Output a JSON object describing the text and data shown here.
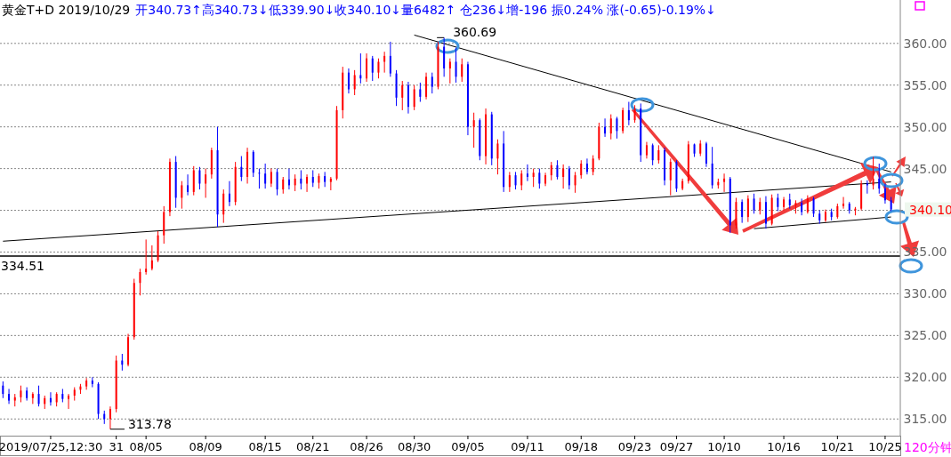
{
  "chart_data": {
    "type": "candlestick",
    "title": "黄金T+D 2019/10/29",
    "subtitle": "开340.73↑高340.73↓低339.90↓收340.10↓量6482↑ 仓236↓增-196 振0.24% 涨(-0.65)-0.19%↓",
    "categories": [
      null,
      null,
      null,
      null,
      null,
      null,
      null,
      null,
      "2019/07/25,12:30",
      null,
      null,
      null,
      null,
      null,
      null,
      null,
      null,
      null,
      null,
      "31",
      null,
      null,
      null,
      null,
      "08/05",
      null,
      null,
      null,
      null,
      null,
      null,
      null,
      null,
      null,
      "08/09",
      null,
      null,
      null,
      null,
      null,
      null,
      null,
      null,
      null,
      "08/15",
      null,
      null,
      null,
      null,
      null,
      null,
      null,
      "08/21",
      null,
      null,
      null,
      null,
      null,
      null,
      null,
      null,
      "08/26",
      null,
      null,
      null,
      null,
      null,
      null,
      null,
      "08/30",
      null,
      null,
      null,
      null,
      null,
      null,
      null,
      null,
      "09/05",
      null,
      null,
      null,
      null,
      null,
      null,
      null,
      null,
      null,
      "09/11",
      null,
      null,
      null,
      null,
      null,
      null,
      null,
      null,
      "09/18",
      null,
      null,
      null,
      null,
      null,
      null,
      null,
      null,
      "09/23",
      null,
      null,
      null,
      null,
      null,
      null,
      "09/27",
      null,
      null,
      null,
      null,
      null,
      null,
      null,
      "10/10",
      null,
      null,
      null,
      null,
      null,
      null,
      null,
      null,
      null,
      "10/16",
      null,
      null,
      null,
      null,
      null,
      null,
      null,
      null,
      "10/21",
      null,
      null,
      null,
      null,
      null,
      null,
      null,
      "10/25",
      null
    ],
    "ohlc": [
      [
        319,
        319.5,
        317.5,
        318
      ],
      [
        318,
        318.6,
        316.8,
        317.2
      ],
      [
        317.2,
        318,
        316.5,
        317.6
      ],
      [
        317.6,
        319,
        317,
        318.4
      ],
      [
        318.4,
        318.8,
        317.2,
        317.5
      ],
      [
        317.5,
        318.2,
        316.8,
        318
      ],
      [
        318,
        319,
        316.5,
        316.8
      ],
      [
        316.8,
        317.8,
        316.2,
        317.5
      ],
      [
        317.5,
        318.2,
        316.6,
        317
      ],
      [
        317,
        318.2,
        316.5,
        318
      ],
      [
        318,
        318.6,
        317,
        317.4
      ],
      [
        317.4,
        318,
        316.2,
        317.8
      ],
      [
        317.8,
        318.8,
        317.2,
        318.5
      ],
      [
        318.5,
        319.2,
        318,
        318.9
      ],
      [
        318.9,
        319.9,
        318.5,
        319.6
      ],
      [
        319.6,
        320,
        318.8,
        319.2
      ],
      [
        319.2,
        319.4,
        315,
        315.6
      ],
      [
        315.6,
        316,
        314.4,
        315
      ],
      [
        315,
        316.5,
        313.78,
        316.2
      ],
      [
        316.2,
        322.6,
        315.8,
        322
      ],
      [
        322,
        322.8,
        320.8,
        321.5
      ],
      [
        321.5,
        325.2,
        321.3,
        324.8
      ],
      [
        324.8,
        331.8,
        324.5,
        331.3
      ],
      [
        331.3,
        333,
        329.8,
        332.6
      ],
      [
        332.6,
        336.5,
        332.3,
        333
      ],
      [
        333,
        335.8,
        332.8,
        334
      ],
      [
        334,
        337.5,
        333.8,
        337
      ],
      [
        337,
        340.5,
        336,
        339.8
      ],
      [
        339.8,
        346.2,
        339.3,
        345.8
      ],
      [
        345.8,
        346.5,
        340.3,
        341.5
      ],
      [
        341.5,
        343.5,
        340.2,
        343
      ],
      [
        343,
        344.3,
        341.8,
        342.2
      ],
      [
        342.2,
        345.3,
        341.8,
        344.8
      ],
      [
        344.8,
        345.2,
        342.5,
        343.2
      ],
      [
        343.2,
        345,
        341.5,
        344.3
      ],
      [
        344.3,
        347.5,
        343.8,
        347.2
      ],
      [
        347.2,
        350,
        338,
        339.5
      ],
      [
        339.5,
        342.5,
        338.5,
        342
      ],
      [
        342,
        343.5,
        340.5,
        341
      ],
      [
        341,
        345.8,
        340.6,
        345.2
      ],
      [
        345.2,
        346.5,
        343.5,
        344
      ],
      [
        344,
        347.5,
        343.2,
        347
      ],
      [
        347,
        347.2,
        344,
        344.5
      ],
      [
        344.5,
        345,
        342.6,
        344.4
      ],
      [
        344.4,
        345.6,
        342.6,
        343.2
      ],
      [
        343.2,
        345,
        342.8,
        344.6
      ],
      [
        344.6,
        345,
        341.8,
        342.5
      ],
      [
        342.5,
        344,
        342,
        343.7
      ],
      [
        343.7,
        345,
        342.5,
        343
      ],
      [
        343,
        344.3,
        342.3,
        343.8
      ],
      [
        343.8,
        344.8,
        342.5,
        343.2
      ],
      [
        343.2,
        344.3,
        342.2,
        344
      ],
      [
        344,
        344.8,
        342.8,
        343.3
      ],
      [
        343.3,
        344.4,
        342.6,
        344.1
      ],
      [
        344.1,
        344.6,
        342.8,
        343.4
      ],
      [
        343.4,
        344,
        342.4,
        343.8
      ],
      [
        343.8,
        352.5,
        343.6,
        352
      ],
      [
        352,
        357.2,
        351,
        356.5
      ],
      [
        356.5,
        357,
        354,
        354.5
      ],
      [
        354.5,
        356.8,
        353.8,
        356.2
      ],
      [
        356.2,
        358.8,
        355.2,
        355.8
      ],
      [
        355.8,
        358.8,
        355.4,
        358.2
      ],
      [
        358.2,
        358.5,
        355.5,
        356.5
      ],
      [
        356.5,
        358.2,
        355.8,
        357.8
      ],
      [
        357.8,
        359,
        356.5,
        358.5
      ],
      [
        358.5,
        360.2,
        356,
        356.4
      ],
      [
        356.4,
        356.8,
        352.5,
        353.5
      ],
      [
        353.5,
        355.5,
        352,
        355
      ],
      [
        355,
        355.4,
        351.6,
        352.4
      ],
      [
        352.4,
        355,
        352,
        354.5
      ],
      [
        354.5,
        355.3,
        353,
        353.6
      ],
      [
        353.6,
        356.5,
        353.3,
        356
      ],
      [
        356,
        356.5,
        354,
        354.8
      ],
      [
        354.8,
        360.2,
        354.5,
        359.6
      ],
      [
        359.6,
        360.69,
        356,
        357
      ],
      [
        357,
        358.2,
        355.2,
        357.8
      ],
      [
        357.8,
        359.5,
        355.3,
        356
      ],
      [
        356,
        358.2,
        355.4,
        357.5
      ],
      [
        357.5,
        357.8,
        349,
        350
      ],
      [
        350,
        351.7,
        347.5,
        350.8
      ],
      [
        350.8,
        351,
        346,
        346.5
      ],
      [
        346.5,
        352.2,
        345.5,
        351.5
      ],
      [
        351.5,
        351.8,
        345.4,
        346.2
      ],
      [
        346.2,
        348.5,
        344.3,
        348
      ],
      [
        348,
        349.5,
        342.2,
        342.8
      ],
      [
        342.8,
        344.6,
        342.2,
        344.2
      ],
      [
        344.2,
        344.6,
        342.5,
        343
      ],
      [
        343,
        344.8,
        342.4,
        344.4
      ],
      [
        344.4,
        345.5,
        343.5,
        344
      ],
      [
        344,
        345,
        342.8,
        344.5
      ],
      [
        344.5,
        345,
        342.6,
        343.2
      ],
      [
        343.2,
        344.5,
        342.9,
        344.2
      ],
      [
        344.2,
        345.8,
        343.6,
        345.4
      ],
      [
        345.4,
        346,
        343.7,
        344
      ],
      [
        344,
        345.5,
        342.6,
        345
      ],
      [
        345,
        345.3,
        342.5,
        343
      ],
      [
        343,
        344.6,
        342.1,
        344.2
      ],
      [
        344.2,
        346,
        343.8,
        345.6
      ],
      [
        345.6,
        346.2,
        344.3,
        344.6
      ],
      [
        344.6,
        346.6,
        344.2,
        346.2
      ],
      [
        346.2,
        350.5,
        346,
        350
      ],
      [
        350,
        351,
        348.8,
        349.2
      ],
      [
        349.2,
        351.5,
        348.5,
        351
      ],
      [
        351,
        351.2,
        348.6,
        349.5
      ],
      [
        349.5,
        352.3,
        349.2,
        352
      ],
      [
        352,
        353,
        350.2,
        350.8
      ],
      [
        350.8,
        352.6,
        350.5,
        352.2
      ],
      [
        352.2,
        352.8,
        345.8,
        346.6
      ],
      [
        346.6,
        348.2,
        346.2,
        347.8
      ],
      [
        347.8,
        348,
        345.4,
        346
      ],
      [
        346,
        347.8,
        345.6,
        347.2
      ],
      [
        347.2,
        347.5,
        343,
        343.6
      ],
      [
        343.6,
        346.2,
        341.8,
        345.8
      ],
      [
        345.8,
        346,
        342.2,
        342.6
      ],
      [
        342.6,
        343.8,
        342.4,
        343.5
      ],
      [
        343.5,
        348.3,
        343.2,
        347.9
      ],
      [
        347.9,
        348,
        346.4,
        346.8
      ],
      [
        346.8,
        348.4,
        346.5,
        348
      ],
      [
        348,
        348.2,
        345.2,
        345.6
      ],
      [
        345.6,
        347.6,
        342.6,
        343
      ],
      [
        343,
        343.8,
        342.6,
        343.4
      ],
      [
        343.4,
        344.4,
        342.2,
        343.8
      ],
      [
        343.8,
        344,
        337.3,
        338.2
      ],
      [
        338.2,
        341.5,
        337.8,
        341
      ],
      [
        341,
        341.3,
        338.5,
        339.2
      ],
      [
        339.2,
        341.8,
        338.6,
        341.4
      ],
      [
        341.4,
        342,
        339.6,
        340
      ],
      [
        340,
        341.5,
        339.5,
        341
      ],
      [
        341,
        341.7,
        337.8,
        338.4
      ],
      [
        338.4,
        341.9,
        338.2,
        341.5
      ],
      [
        341.5,
        342,
        339.9,
        340.4
      ],
      [
        340.4,
        341.6,
        340,
        341.3
      ],
      [
        341.3,
        342,
        340.2,
        340.6
      ],
      [
        340.6,
        341.2,
        339.6,
        340.9
      ],
      [
        340.9,
        341.4,
        339.4,
        339.8
      ],
      [
        339.8,
        341.8,
        339.6,
        341.4
      ],
      [
        341.4,
        341.6,
        339.2,
        339.6
      ],
      [
        339.6,
        340,
        338.4,
        338.8
      ],
      [
        338.8,
        340.1,
        338.6,
        339.8
      ],
      [
        339.8,
        340.2,
        338.8,
        339.2
      ],
      [
        339.2,
        340.8,
        339,
        340.5
      ],
      [
        340.5,
        341.6,
        340.2,
        340.8
      ],
      [
        340.8,
        341,
        339.6,
        340
      ],
      [
        340,
        340.4,
        339.4,
        340.2
      ],
      [
        340.2,
        343.6,
        340,
        343.2
      ],
      [
        343.2,
        343.6,
        342,
        343
      ],
      [
        343,
        346.4,
        342.5,
        343.8
      ],
      [
        343.8,
        345.6,
        342,
        342.6
      ],
      [
        342.6,
        343.2,
        340.8,
        341.2
      ],
      [
        341.2,
        341.6,
        339.9,
        340.1
      ]
    ],
    "series": [
      {
        "type": "line",
        "color": "#000000",
        "values": [
          null,
          null,
          null,
          null,
          null,
          null,
          null,
          null,
          null,
          null,
          null,
          null,
          null,
          null,
          null,
          null,
          null,
          null,
          null,
          null,
          null,
          null,
          null,
          null,
          null,
          null,
          null,
          null,
          null,
          null,
          null,
          null,
          null,
          null,
          null,
          null,
          null,
          null,
          null,
          null,
          null,
          null,
          null,
          null,
          null,
          null,
          null,
          null,
          null,
          null,
          null,
          null,
          null,
          null,
          null,
          null,
          null,
          null,
          null,
          null,
          null,
          null,
          null,
          null,
          null,
          null,
          null,
          null,
          null,
          361,
          null,
          null,
          null,
          null,
          null,
          null,
          null,
          null,
          null,
          null,
          null,
          null,
          null,
          null,
          null,
          null,
          null,
          null,
          null,
          null,
          null,
          null,
          null,
          null,
          null,
          null,
          null,
          null,
          null,
          null,
          null,
          null,
          null,
          null,
          null,
          null,
          null,
          null,
          null,
          null,
          null,
          null,
          null,
          null,
          null,
          null,
          null,
          null,
          null,
          null,
          null,
          null,
          null,
          null,
          null,
          null,
          null,
          null,
          null,
          null,
          null,
          null,
          null,
          null,
          null,
          null,
          null,
          null,
          null,
          null,
          null,
          null,
          null,
          null,
          null,
          null,
          null,
          null,
          null,
          344.6
        ]
      },
      {
        "type": "line",
        "color": "#000000",
        "values": [
          336.3,
          null,
          null,
          null,
          null,
          null,
          null,
          null,
          null,
          null,
          null,
          null,
          null,
          null,
          null,
          null,
          null,
          null,
          null,
          null,
          null,
          null,
          null,
          null,
          null,
          null,
          null,
          null,
          null,
          null,
          null,
          null,
          null,
          null,
          null,
          null,
          null,
          null,
          null,
          null,
          null,
          null,
          null,
          null,
          null,
          null,
          null,
          null,
          null,
          null,
          null,
          null,
          null,
          null,
          null,
          null,
          null,
          null,
          null,
          null,
          null,
          null,
          null,
          null,
          null,
          null,
          null,
          null,
          null,
          null,
          null,
          null,
          null,
          null,
          null,
          null,
          null,
          null,
          null,
          null,
          null,
          null,
          null,
          null,
          null,
          null,
          null,
          null,
          null,
          null,
          null,
          null,
          null,
          null,
          null,
          null,
          null,
          null,
          null,
          null,
          null,
          null,
          null,
          null,
          null,
          null,
          null,
          null,
          null,
          null,
          null,
          null,
          null,
          null,
          null,
          null,
          null,
          null,
          null,
          null,
          null,
          null,
          null,
          null,
          null,
          null,
          null,
          null,
          null,
          null,
          null,
          null,
          null,
          null,
          null,
          null,
          null,
          null,
          null,
          null,
          null,
          null,
          null,
          null,
          null,
          null,
          null,
          null,
          null,
          343.4
        ]
      },
      {
        "type": "line",
        "color": "#000000",
        "values": [
          null,
          null,
          null,
          null,
          null,
          null,
          null,
          null,
          null,
          null,
          null,
          null,
          null,
          null,
          null,
          null,
          null,
          null,
          null,
          null,
          null,
          null,
          null,
          null,
          null,
          null,
          null,
          null,
          null,
          null,
          null,
          null,
          null,
          null,
          null,
          null,
          null,
          null,
          null,
          null,
          null,
          null,
          null,
          null,
          null,
          null,
          null,
          null,
          null,
          null,
          null,
          null,
          null,
          null,
          null,
          null,
          null,
          null,
          null,
          null,
          null,
          null,
          null,
          null,
          null,
          null,
          null,
          null,
          null,
          null,
          null,
          null,
          null,
          null,
          null,
          null,
          null,
          null,
          null,
          null,
          null,
          null,
          null,
          null,
          null,
          null,
          null,
          null,
          null,
          null,
          null,
          null,
          null,
          null,
          null,
          null,
          null,
          null,
          null,
          null,
          null,
          null,
          null,
          null,
          null,
          null,
          null,
          null,
          null,
          null,
          null,
          null,
          null,
          null,
          null,
          null,
          null,
          null,
          null,
          null,
          null,
          null,
          null,
          null,
          null,
          null,
          337.8,
          null,
          null,
          null,
          null,
          null,
          null,
          null,
          null,
          null,
          null,
          null,
          null,
          null,
          null,
          null,
          null,
          null,
          null,
          null,
          null,
          null,
          null,
          339.2
        ]
      }
    ],
    "ylim": [
      313,
      365.2
    ],
    "yticks": [
      {
        "value": 315,
        "label": "315.00"
      },
      {
        "value": 320,
        "label": "320.00"
      },
      {
        "value": 325,
        "label": "325.00"
      },
      {
        "value": 330,
        "label": "330.00"
      },
      {
        "value": 335,
        "label": "335.00"
      },
      {
        "value": 340,
        "label": null
      },
      {
        "value": 345,
        "label": "345.00"
      },
      {
        "value": 350,
        "label": "350.00"
      },
      {
        "value": 355,
        "label": "355.00"
      },
      {
        "value": 360,
        "label": "360.00"
      }
    ],
    "grid": "y",
    "ref_lines": [
      {
        "axis": "y",
        "value": 334.51,
        "label": "334.51",
        "color": "#000000"
      }
    ],
    "annotations": [
      "360.69",
      "313.78",
      "340.10",
      "120分钟"
    ]
  }
}
